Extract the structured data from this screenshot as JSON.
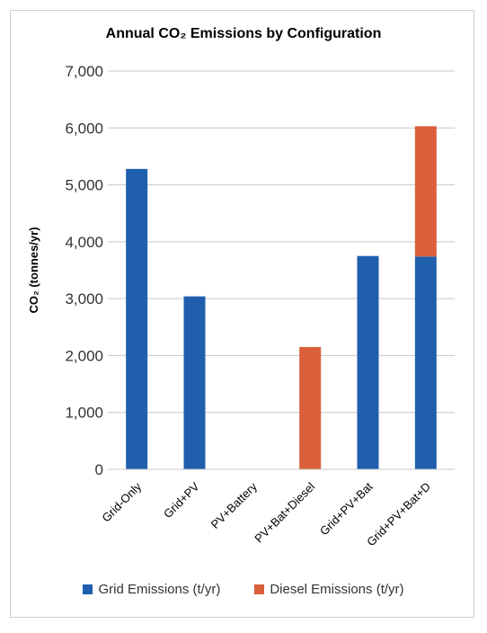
{
  "chart_data": {
    "type": "bar",
    "stacked": true,
    "title": "Annual CO₂ Emissions by Configuration",
    "xlabel": "",
    "ylabel": "CO₂ (tonnes/yr)",
    "ylim": [
      0,
      7000
    ],
    "yticks": [
      0,
      1000,
      2000,
      3000,
      4000,
      5000,
      6000,
      7000
    ],
    "ytick_labels": [
      "0",
      "1,000",
      "2,000",
      "3,000",
      "4,000",
      "5,000",
      "6,000",
      "7,000"
    ],
    "grid": true,
    "legend_position": "bottom",
    "categories": [
      "Grid-Only",
      "Grid+PV",
      "PV+Battery",
      "PV+Bat+Diesel",
      "Grid+PV+Bat",
      "Grid+PV+Bat+D"
    ],
    "series": [
      {
        "name": "Grid Emissions (t/yr)",
        "color": "#1f5fad",
        "values": [
          5280,
          3040,
          0,
          0,
          3750,
          3740
        ]
      },
      {
        "name": "Diesel Emissions (t/yr)",
        "color": "#d9603b",
        "values": [
          0,
          0,
          0,
          2150,
          0,
          2290
        ]
      }
    ]
  }
}
